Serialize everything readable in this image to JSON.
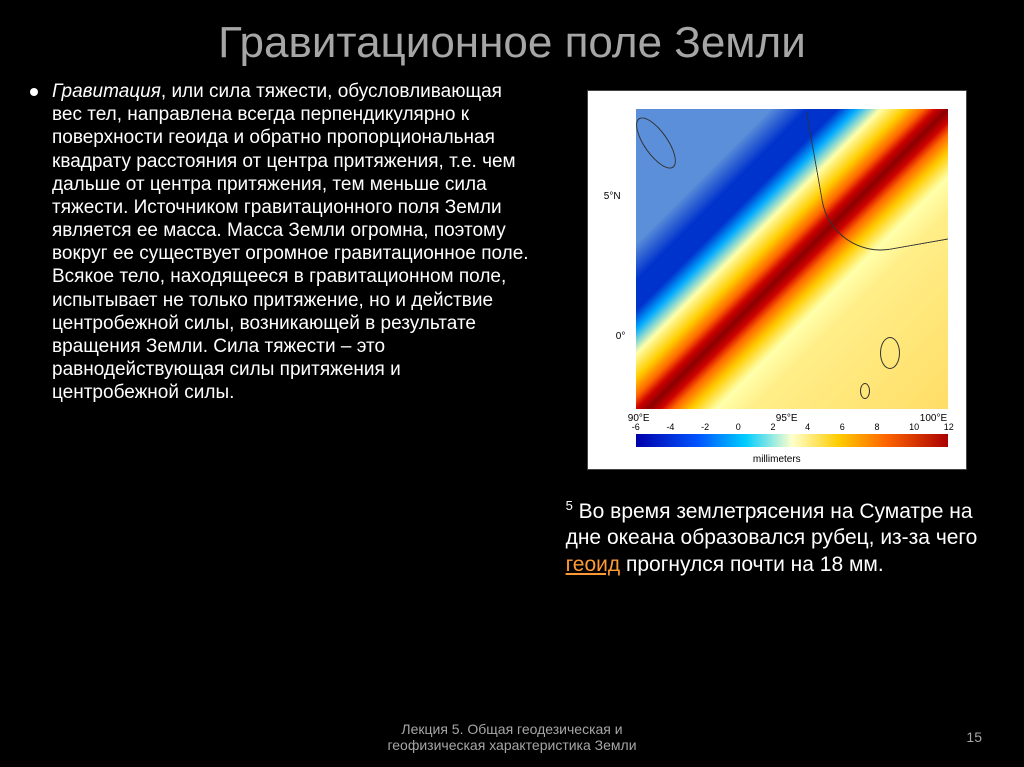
{
  "title": "Гравитационное поле Земли",
  "body": {
    "html": "<span class=\"italic\">Гравитация</span>, или сила тяжести, обусловливающая вес тел, направлена всегда перпендикулярно к поверхности геоида и обратно пропорциональная квадрату расстояния от центра притяжения, т.е. чем дальше от центра притяжения, тем меньше сила тяжести. Источником гравитационного поля Земли является ее масса. Масса Земли огромна, поэтому вокруг ее существует огромное гравитационное поле. Всякое тело, находящееся в гравитационном поле, испытывает не только притяжение, но и действие центробежной силы, возникающей в результате вращения Земли. Сила тяжести – это равнодействующая силы притяжения и центробежной силы."
  },
  "chart": {
    "y_ticks": [
      "5°N",
      "0°"
    ],
    "x_ticks": [
      "90°E",
      "95°E",
      "100°E"
    ],
    "colorbar_ticks": [
      "-6",
      "-4",
      "-2",
      "0",
      "2",
      "4",
      "6",
      "8",
      "10",
      "12"
    ],
    "colorbar_label": "millimeters"
  },
  "caption": {
    "sup": "5",
    "text_before": " Во время землетрясения на Суматре на дне океана образовался рубец, из-за чего ",
    "link": "геоид",
    "text_after": " прогнулся почти на 18 мм."
  },
  "footer": "Лекция 5. Общая геодезическая и геофизическая характеристика Земли",
  "page": "15"
}
